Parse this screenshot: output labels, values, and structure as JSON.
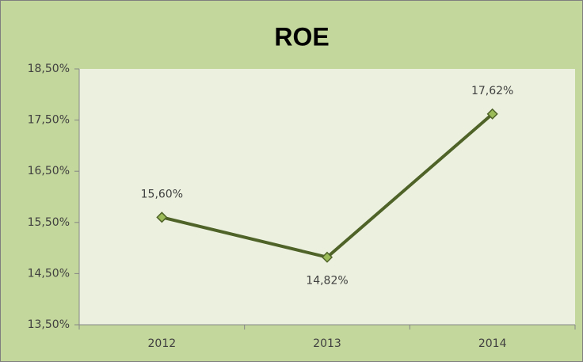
{
  "chart_data": {
    "type": "line",
    "title": "ROE",
    "categories": [
      "2012",
      "2013",
      "2014"
    ],
    "series": [
      {
        "name": "ROE",
        "color": "#4f6228",
        "marker_color": "#9bbb59",
        "values": [
          15.6,
          14.82,
          17.62
        ],
        "value_labels": [
          "15,60%",
          "14,82%",
          "17,62%"
        ]
      }
    ],
    "ylim": [
      13.5,
      18.5
    ],
    "yticks": [
      {
        "value": 13.5,
        "label": "13,50%"
      },
      {
        "value": 14.5,
        "label": "14,50%"
      },
      {
        "value": 15.5,
        "label": "15,50%"
      },
      {
        "value": 16.5,
        "label": "16,50%"
      },
      {
        "value": 17.5,
        "label": "17,50%"
      },
      {
        "value": 18.5,
        "label": "18,50%"
      }
    ],
    "grid": false,
    "legend": false
  }
}
